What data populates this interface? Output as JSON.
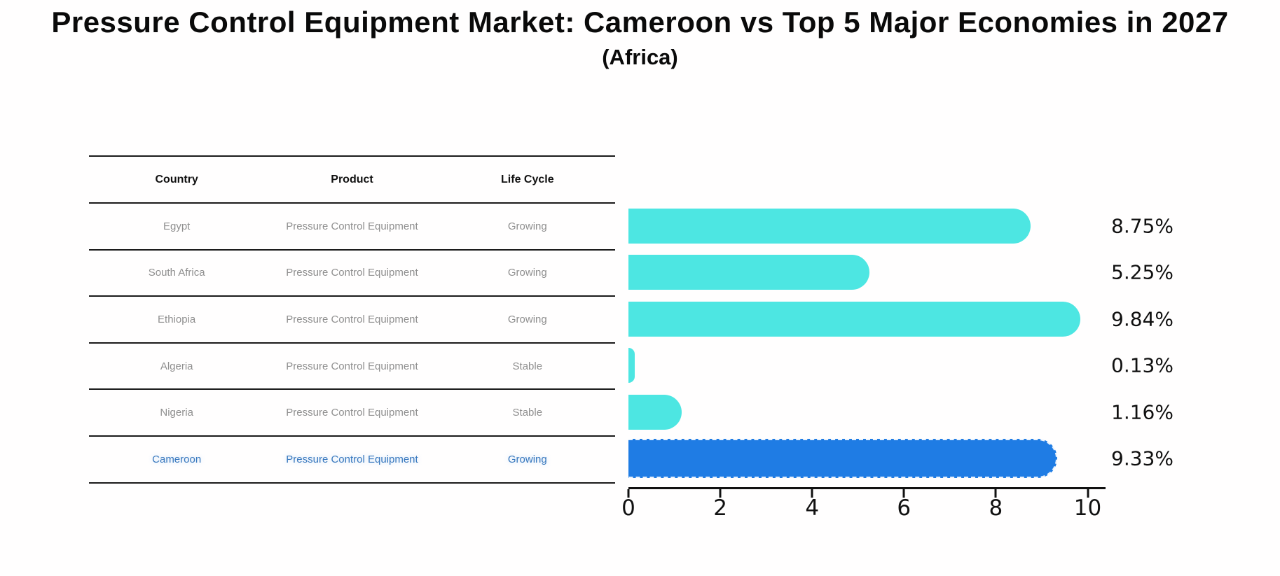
{
  "title": "Pressure Control Equipment Market: Cameroon vs Top 5 Major Economies in 2027",
  "subtitle": "(Africa)",
  "table": {
    "headers": {
      "country": "Country",
      "product": "Product",
      "life_cycle": "Life Cycle"
    },
    "rows": [
      {
        "country": "Egypt",
        "product": "Pressure Control Equipment",
        "life_cycle": "Growing"
      },
      {
        "country": "South Africa",
        "product": "Pressure Control Equipment",
        "life_cycle": "Growing"
      },
      {
        "country": "Ethiopia",
        "product": "Pressure Control Equipment",
        "life_cycle": "Growing"
      },
      {
        "country": "Algeria",
        "product": "Pressure Control Equipment",
        "life_cycle": "Stable"
      },
      {
        "country": "Nigeria",
        "product": "Pressure Control Equipment",
        "life_cycle": "Stable"
      },
      {
        "country": "Cameroon",
        "product": "Pressure Control Equipment",
        "life_cycle": "Growing"
      }
    ]
  },
  "chart_data": {
    "type": "bar",
    "orientation": "horizontal",
    "title": "Pressure Control Equipment Market: Cameroon vs Top 5 Major Economies in 2027",
    "subtitle": "(Africa)",
    "categories": [
      "Egypt",
      "South Africa",
      "Ethiopia",
      "Algeria",
      "Nigeria",
      "Cameroon"
    ],
    "values": [
      8.75,
      5.25,
      9.84,
      0.13,
      1.16,
      9.33
    ],
    "value_labels": [
      "8.75%",
      "5.25%",
      "9.84%",
      "0.13%",
      "1.16%",
      "9.33%"
    ],
    "xlim": [
      0,
      10
    ],
    "x_ticks": [
      0,
      2,
      4,
      6,
      8,
      10
    ],
    "grid": "off",
    "legend": "none",
    "bar_color": "#4DE6E2",
    "highlight_index": 5,
    "highlight_color": "#1F7CE4",
    "highlight_text_color": "#3878BE"
  }
}
